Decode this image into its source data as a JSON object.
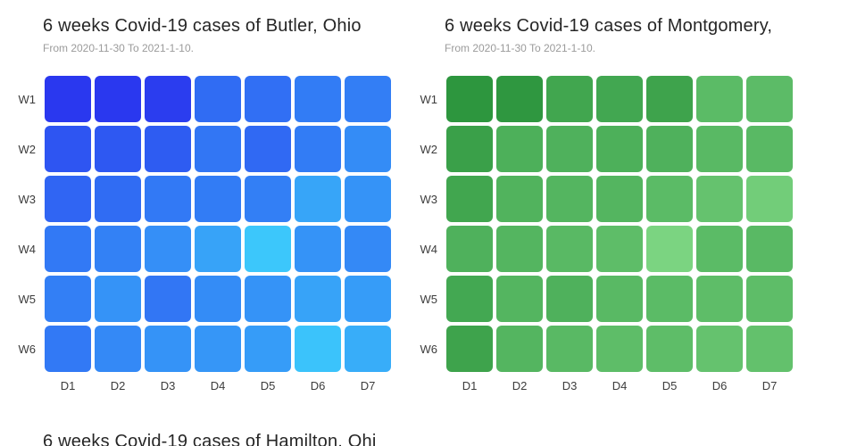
{
  "chart_data": [
    {
      "type": "heatmap",
      "title": "6 weeks Covid-19 cases of Butler, Ohio",
      "subtitle": "From 2020-11-30 To 2021-1-10.",
      "x_labels": [
        "D1",
        "D2",
        "D3",
        "D4",
        "D5",
        "D6",
        "D7"
      ],
      "y_labels": [
        "W1",
        "W2",
        "W3",
        "W4",
        "W5",
        "W6"
      ],
      "values_note": "normalized intensity 0-1 estimated from cell color; 1 = darkest (most cases)",
      "values": [
        [
          1.0,
          1.0,
          0.97,
          0.68,
          0.66,
          0.58,
          0.57
        ],
        [
          0.82,
          0.8,
          0.78,
          0.62,
          0.7,
          0.58,
          0.48
        ],
        [
          0.72,
          0.68,
          0.6,
          0.58,
          0.56,
          0.33,
          0.44
        ],
        [
          0.6,
          0.55,
          0.46,
          0.34,
          0.12,
          0.44,
          0.5
        ],
        [
          0.56,
          0.44,
          0.62,
          0.48,
          0.44,
          0.34,
          0.38
        ],
        [
          0.6,
          0.5,
          0.44,
          0.42,
          0.38,
          0.14,
          0.28
        ]
      ],
      "color_scale": {
        "light": "#3edafd",
        "dark": "#2a38ef"
      },
      "legend": "none",
      "grid": "rounded square cells with white gaps"
    },
    {
      "type": "heatmap",
      "title": "6 weeks Covid-19 cases of Montgomery,",
      "subtitle": "From 2020-11-30 To 2021-1-10.",
      "x_labels": [
        "D1",
        "D2",
        "D3",
        "D4",
        "D5",
        "D6",
        "D7"
      ],
      "y_labels": [
        "W1",
        "W2",
        "W3",
        "W4",
        "W5",
        "W6"
      ],
      "values_note": "normalized intensity 0-1 estimated from cell color; 1 = darkest (most cases)",
      "values": [
        [
          0.95,
          0.93,
          0.75,
          0.73,
          0.78,
          0.48,
          0.47
        ],
        [
          0.82,
          0.62,
          0.6,
          0.62,
          0.6,
          0.5,
          0.5
        ],
        [
          0.75,
          0.58,
          0.55,
          0.55,
          0.48,
          0.38,
          0.25
        ],
        [
          0.6,
          0.55,
          0.5,
          0.45,
          0.15,
          0.48,
          0.5
        ],
        [
          0.72,
          0.55,
          0.6,
          0.5,
          0.48,
          0.45,
          0.45
        ],
        [
          0.78,
          0.55,
          0.5,
          0.45,
          0.45,
          0.38,
          0.4
        ]
      ],
      "color_scale": {
        "light": "#8ae08e",
        "dark": "#28923a"
      },
      "legend": "none",
      "grid": "rounded square cells with white gaps"
    },
    {
      "type": "heatmap",
      "title": "6 weeks Covid-19 cases of Hamilton, Ohi",
      "subtitle": "",
      "values_note": "chart clipped at bottom edge of viewport; only title visible"
    }
  ],
  "styles": {
    "title_color": "#262626",
    "subtitle_color": "#9b9b9b",
    "axis_label_color": "#3c3c3c",
    "background": "#ffffff"
  }
}
